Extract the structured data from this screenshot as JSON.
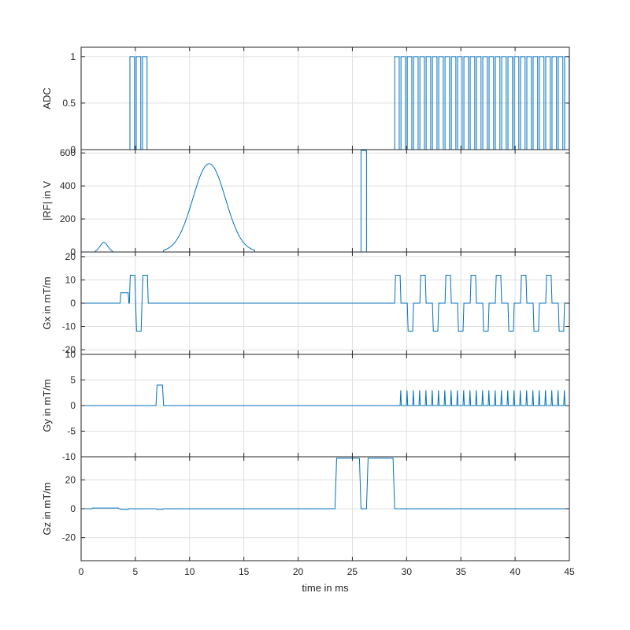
{
  "chart_data": {
    "type": "line",
    "x_label": "time in ms",
    "x_range": [
      0,
      45
    ],
    "x_ticks": [
      0,
      5,
      10,
      15,
      20,
      25,
      30,
      35,
      40,
      45
    ],
    "line_color": "#0072bd",
    "grid": true,
    "panels": [
      {
        "ylabel": "ADC",
        "y_range": [
          0,
          1.1
        ],
        "y_ticks": [
          0,
          0.5,
          1
        ],
        "y_tick_labels": [
          "0",
          "0.5",
          "1"
        ],
        "readouts": [
          {
            "start": 4.5,
            "period": 0.58,
            "width": 0.42,
            "count": 3
          },
          {
            "start": 28.9,
            "period": 0.58,
            "width": 0.42,
            "count": 28
          }
        ]
      },
      {
        "ylabel": "|RF| in V",
        "y_range": [
          0,
          620
        ],
        "y_ticks": [
          0,
          200,
          400,
          600
        ],
        "y_tick_labels": [
          "0",
          "200",
          "400",
          "600"
        ],
        "gaussian_pulses": [
          {
            "center": 2.1,
            "peak": 58,
            "sigma": 0.36,
            "start": 1.3,
            "end": 2.9
          },
          {
            "center": 11.8,
            "peak": 535,
            "sigma": 1.5,
            "start": 7.6,
            "end": 16.0
          }
        ],
        "rect_pulses": [
          {
            "start": 25.8,
            "end": 26.3,
            "amplitude": 615
          }
        ]
      },
      {
        "ylabel": "Gx in mT/m",
        "y_range": [
          -22,
          22
        ],
        "y_ticks": [
          -20,
          -10,
          0,
          10,
          20
        ],
        "y_tick_labels": [
          "-20",
          "-10",
          "0",
          "10",
          "20"
        ],
        "prewinder": {
          "start": 3.6,
          "end": 4.4,
          "amplitude": 4.5,
          "ramp": 0.06
        },
        "readouts": [
          {
            "start": 4.45,
            "period": 0.58,
            "count": 3,
            "amplitude": 12,
            "flat": 0.42,
            "ramp": 0.08
          },
          {
            "start": 28.9,
            "period": 1.16,
            "count": 14,
            "amplitude": 12,
            "flat": 0.42,
            "ramp": 0.08
          }
        ]
      },
      {
        "ylabel": "Gy in mT/m",
        "y_range": [
          -10,
          10
        ],
        "y_ticks": [
          -10,
          -5,
          0,
          5,
          10
        ],
        "y_tick_labels": [
          "-10",
          "-5",
          "0",
          "5",
          "10"
        ],
        "prephaser": {
          "start": 6.9,
          "end": 7.6,
          "amplitude": 4,
          "ramp": 0.1
        },
        "blips": {
          "start": 29.4,
          "period": 0.58,
          "count": 28,
          "amplitude": 3,
          "width": 0.12
        }
      },
      {
        "ylabel": "Gz in mT/m",
        "y_range": [
          -36,
          36
        ],
        "y_ticks": [
          -20,
          0,
          20
        ],
        "y_tick_labels": [
          "-20",
          "0",
          "20"
        ],
        "small_lobes": [
          {
            "start": 1.0,
            "end": 3.5,
            "amplitude": 0.5
          },
          {
            "start": 3.6,
            "end": 4.4,
            "amplitude": -0.5
          },
          {
            "start": 6.9,
            "end": 7.6,
            "amplitude": -0.4
          }
        ],
        "spoilers": [
          {
            "start": 23.4,
            "end": 25.8,
            "amplitude": 35,
            "ramp": 0.15
          },
          {
            "start": 26.3,
            "end": 28.9,
            "amplitude": 35,
            "ramp": 0.15
          }
        ]
      }
    ]
  }
}
